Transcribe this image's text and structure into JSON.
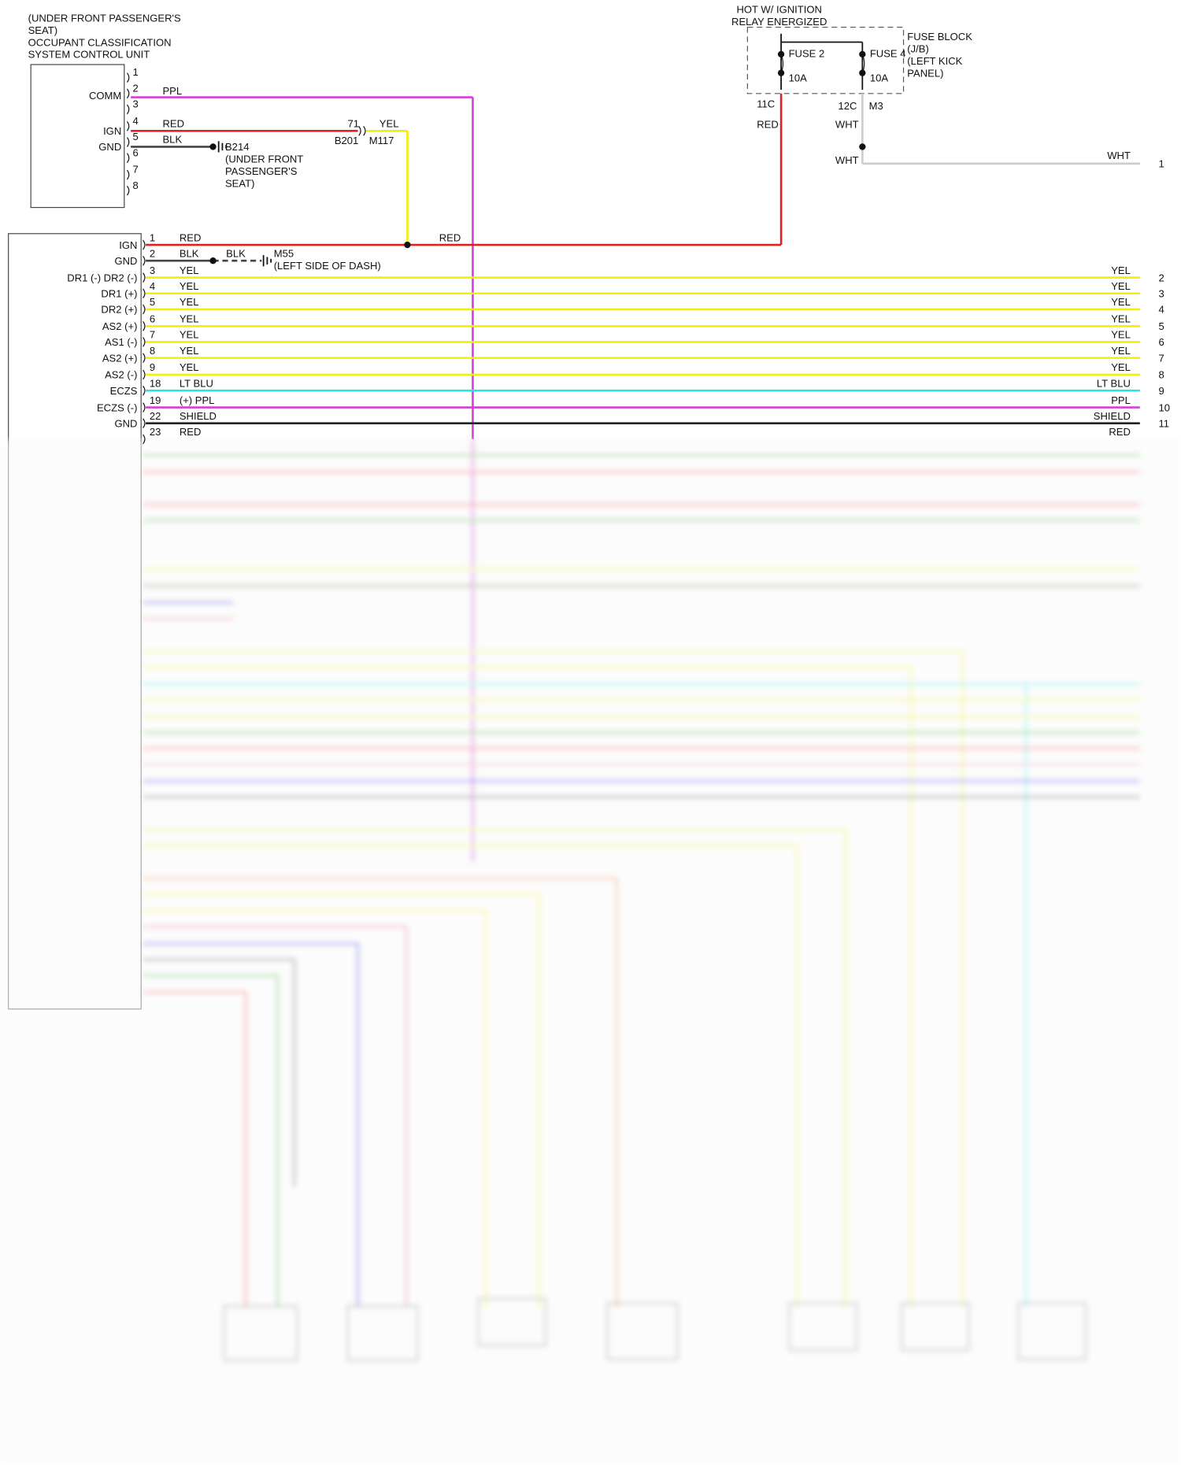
{
  "occupant_unit": {
    "label": [
      "(UNDER FRONT PASSENGER'S",
      "SEAT)",
      "OCCUPANT CLASSIFICATION",
      "SYSTEM CONTROL UNIT"
    ],
    "pins": [
      "1",
      "2",
      "3",
      "4",
      "5",
      "6",
      "7",
      "8"
    ],
    "pin_labels": [
      "COMM",
      "IGN",
      "GND"
    ],
    "wires": [
      {
        "name": "PPL",
        "color": "#d63fd6"
      },
      {
        "name": "RED",
        "color": "#e02020"
      },
      {
        "name": "BLK",
        "color": "#444444"
      }
    ]
  },
  "splice_b201": {
    "pin": "71",
    "name": "B201",
    "wire": "YEL",
    "wire_color": "#f0f000",
    "connector": "M117"
  },
  "ground_b214": {
    "name": "B214",
    "location": [
      "(UNDER FRONT",
      "PASSENGER'S",
      "SEAT)"
    ]
  },
  "fuse_block": {
    "hot_label": [
      "HOT W/ IGNITION",
      "RELAY ENERGIZED"
    ],
    "fuses": [
      {
        "name": "FUSE 2",
        "rating": "10A"
      },
      {
        "name": "FUSE 4",
        "rating": "10A"
      }
    ],
    "label": [
      "FUSE BLOCK",
      "(J/B)",
      "(LEFT KICK",
      "PANEL)"
    ],
    "left_terminal": "11C",
    "left_wire": "RED",
    "left_color": "#e02020",
    "right_terminals": [
      "12C",
      "M3"
    ],
    "right_wires": [
      "WHT",
      "WHT",
      "WHT"
    ],
    "right_color": "#cccccc",
    "output_pin": "1"
  },
  "module": {
    "ign_wire": "RED",
    "ground": {
      "wire": "BLK",
      "name": "M55",
      "location": "(LEFT SIDE OF DASH)"
    },
    "rows": [
      {
        "name": "IGN",
        "pin": "1",
        "wire": "RED",
        "right_wire": null,
        "right_pin": null,
        "color": "#e02020"
      },
      {
        "name": "GND",
        "pin": "2",
        "wire": "BLK",
        "right_wire": null,
        "right_pin": null,
        "color": "#444444"
      },
      {
        "name": "DR1 (-) DR2 (-)",
        "pin": "3",
        "wire": "YEL",
        "right_wire": "YEL",
        "right_pin": "2",
        "color": "#f0f000"
      },
      {
        "name": "DR1 (+)",
        "pin": "4",
        "wire": "YEL",
        "right_wire": "YEL",
        "right_pin": "3",
        "color": "#f0f000"
      },
      {
        "name": "DR2 (+)",
        "pin": "5",
        "wire": "YEL",
        "right_wire": "YEL",
        "right_pin": "4",
        "color": "#f0f000"
      },
      {
        "name": "AS2 (+)",
        "pin": "6",
        "wire": "YEL",
        "right_wire": "YEL",
        "right_pin": "5",
        "color": "#f0f000"
      },
      {
        "name": "AS1 (-)",
        "pin": "7",
        "wire": "YEL",
        "right_wire": "YEL",
        "right_pin": "6",
        "color": "#f0f000"
      },
      {
        "name": "AS2 (+)",
        "pin": "8",
        "wire": "YEL",
        "right_wire": "YEL",
        "right_pin": "7",
        "color": "#f0f000"
      },
      {
        "name": "AS2 (-)",
        "pin": "9",
        "wire": "YEL",
        "right_wire": "YEL",
        "right_pin": "8",
        "color": "#f0f000"
      },
      {
        "name": "ECZS",
        "pin": "18",
        "wire": "LT BLU",
        "right_wire": "LT BLU",
        "right_pin": "9",
        "color": "#22e3ee"
      },
      {
        "name": "ECZS (-)",
        "pin": "19",
        "wire": "(+) PPL",
        "right_wire": "PPL",
        "right_pin": "10",
        "color": "#d63fd6"
      },
      {
        "name": "GND",
        "pin": "22",
        "wire": "SHIELD",
        "right_wire": "SHIELD",
        "right_pin": "11",
        "color": "#222222"
      },
      {
        "name": null,
        "pin": "23",
        "wire": "RED",
        "right_wire": "RED",
        "right_pin": null,
        "color": "#e02020"
      }
    ]
  }
}
